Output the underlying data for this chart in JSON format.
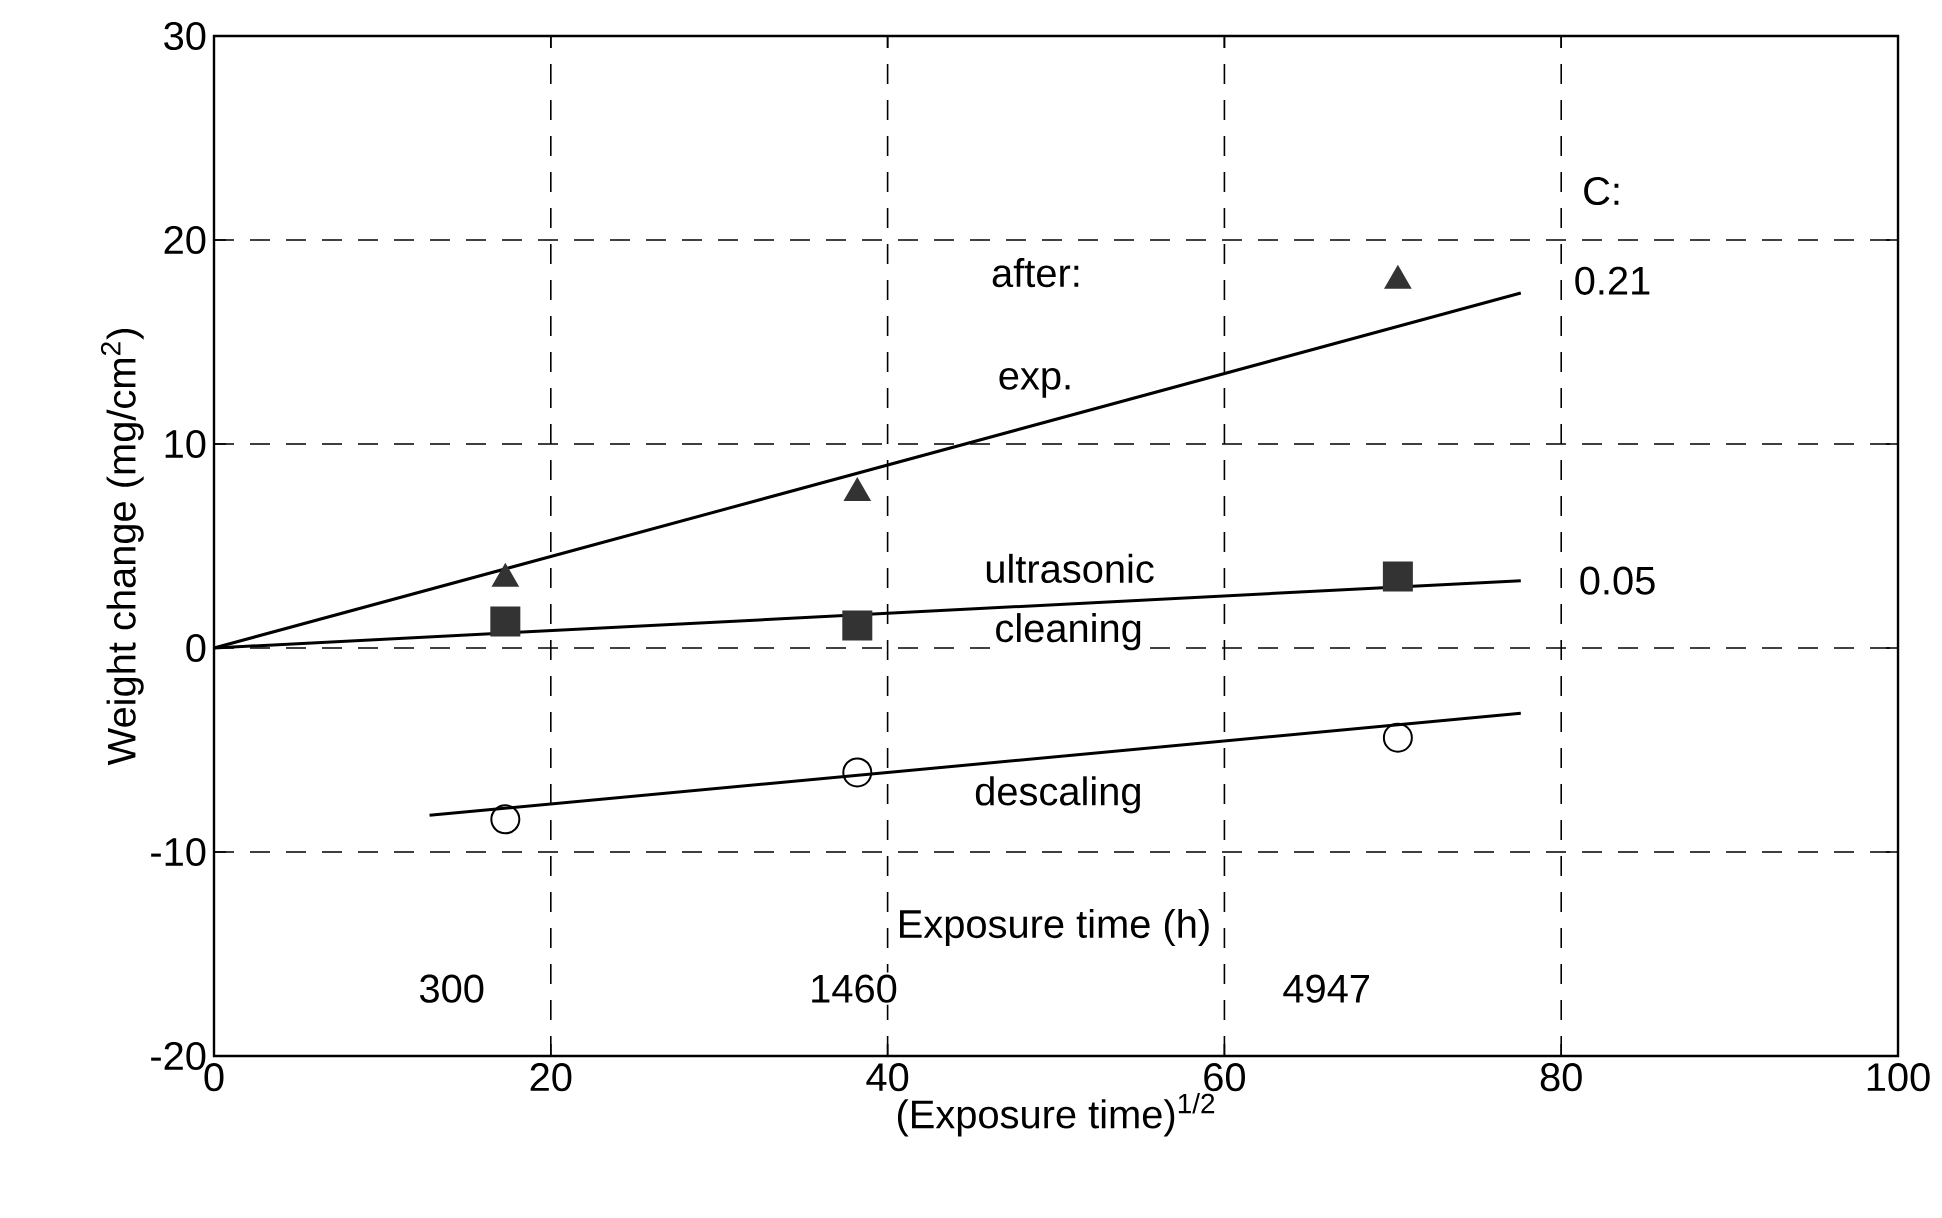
{
  "chart_data": {
    "type": "scatter",
    "xlabel": "(Exposure time)$^{1/2}$",
    "ylabel": "Weight change (mg/cm$^{2}$)",
    "xlim": [
      0,
      100
    ],
    "ylim": [
      -20,
      30
    ],
    "xticks": [
      0,
      20,
      40,
      60,
      80,
      100
    ],
    "yticks": [
      -20,
      -10,
      0,
      10,
      20,
      30
    ],
    "grid": true,
    "series": [
      {
        "marker": "triangle",
        "color": "#333333",
        "x": [
          17.3,
          38.2,
          70.3
        ],
        "values": [
          3.4,
          7.6,
          18.0
        ]
      },
      {
        "marker": "square",
        "color": "#333333",
        "x": [
          17.3,
          38.2,
          70.3
        ],
        "values": [
          1.3,
          1.1,
          3.5
        ]
      },
      {
        "marker": "circle",
        "color": "#000000",
        "x": [
          17.3,
          38.2,
          70.3
        ],
        "values": [
          -8.4,
          -6.1,
          -4.4
        ]
      },
      {
        "type": "line",
        "color": "#000000",
        "x": [
          0,
          77.6
        ],
        "values": [
          0,
          17.4
        ]
      },
      {
        "type": "line",
        "color": "#000000",
        "x": [
          0,
          77.6
        ],
        "values": [
          0,
          3.3
        ]
      },
      {
        "type": "line",
        "color": "#000000",
        "x": [
          12.8,
          77.6
        ],
        "values": [
          -8.2,
          -3.2
        ]
      }
    ],
    "annotations": [
      "after:",
      "exp.",
      "ultrasonic",
      "cleaning",
      "descaling",
      "C:",
      "0.21",
      "0.05",
      "Exposure time (h)",
      "300",
      "1460",
      "4947"
    ]
  }
}
